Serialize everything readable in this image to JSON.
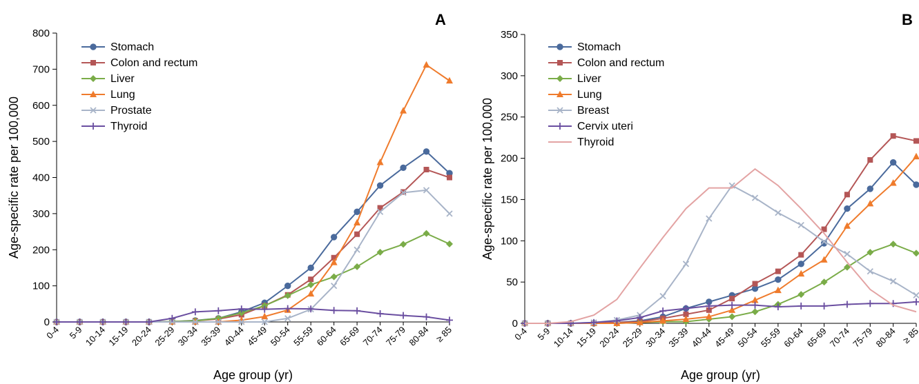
{
  "figure": {
    "panels": [
      {
        "letter": "A"
      },
      {
        "letter": "B"
      }
    ]
  },
  "chart_data": [
    {
      "type": "line",
      "panel_letter": "A",
      "xlabel": "Age group (yr)",
      "ylabel": "Age-specific rate per 100,000",
      "ylim": [
        0,
        800
      ],
      "yticks": [
        0,
        100,
        200,
        300,
        400,
        500,
        600,
        700,
        800
      ],
      "grid": false,
      "legend_position": "top-left",
      "categories": [
        "0-4",
        "5-9",
        "10-14",
        "15-19",
        "20-24",
        "25-29",
        "30-34",
        "35-39",
        "40-44",
        "45-49",
        "50-54",
        "55-59",
        "60-64",
        "65-69",
        "70-74",
        "75-79",
        "80-84",
        "≥ 85"
      ],
      "series": [
        {
          "name": "Stomach",
          "color": "#4a6a9c",
          "marker": "circle",
          "values": [
            0,
            0,
            0,
            0,
            0,
            1,
            4,
            10,
            28,
            53,
            100,
            150,
            235,
            305,
            378,
            427,
            472,
            412
          ]
        },
        {
          "name": "Colon and rectum",
          "color": "#b45656",
          "marker": "square",
          "values": [
            0,
            0,
            0,
            0,
            0,
            1,
            3,
            8,
            20,
            45,
            75,
            118,
            178,
            243,
            316,
            360,
            422,
            400
          ]
        },
        {
          "name": "Liver",
          "color": "#7aac48",
          "marker": "diamond",
          "values": [
            0,
            0,
            0,
            0,
            0,
            1,
            3,
            10,
            25,
            45,
            73,
            103,
            125,
            153,
            193,
            215,
            245,
            216
          ]
        },
        {
          "name": "Lung",
          "color": "#ef7b2c",
          "marker": "triangle",
          "values": [
            0,
            0,
            0,
            0,
            0,
            0,
            0,
            0,
            5,
            15,
            33,
            78,
            165,
            275,
            442,
            585,
            712,
            668
          ]
        },
        {
          "name": "Prostate",
          "color": "#a8b4c8",
          "marker": "x",
          "values": [
            0,
            0,
            0,
            0,
            0,
            0,
            0,
            0,
            0,
            0,
            10,
            35,
            100,
            200,
            305,
            358,
            365,
            300
          ]
        },
        {
          "name": "Thyroid",
          "color": "#6a4ea0",
          "marker": "plus",
          "values": [
            0,
            0,
            0,
            0,
            0,
            10,
            28,
            31,
            36,
            35,
            37,
            36,
            32,
            31,
            23,
            18,
            14,
            5
          ]
        }
      ]
    },
    {
      "type": "line",
      "panel_letter": "B",
      "xlabel": "Age group (yr)",
      "ylabel": "Age-specific rate per 100,000",
      "ylim": [
        0,
        350
      ],
      "yticks": [
        0,
        50,
        100,
        150,
        200,
        250,
        300,
        350
      ],
      "grid": false,
      "legend_position": "top-left",
      "categories": [
        "0-4",
        "5-9",
        "10-14",
        "15-19",
        "20-24",
        "25-29",
        "30-34",
        "35-39",
        "40-44",
        "45-49",
        "50-54",
        "55-59",
        "60-64",
        "65-69",
        "70-74",
        "75-79",
        "80-84",
        "≥ 85"
      ],
      "series": [
        {
          "name": "Stomach",
          "color": "#4a6a9c",
          "marker": "circle",
          "values": [
            0,
            0,
            0,
            0,
            1,
            3,
            8,
            18,
            26,
            34,
            42,
            53,
            72,
            97,
            139,
            163,
            195,
            168
          ]
        },
        {
          "name": "Colon and rectum",
          "color": "#b45656",
          "marker": "square",
          "values": [
            0,
            0,
            0,
            0,
            1,
            2,
            6,
            11,
            16,
            30,
            48,
            63,
            83,
            114,
            156,
            198,
            227,
            221
          ]
        },
        {
          "name": "Liver",
          "color": "#7aac48",
          "marker": "diamond",
          "values": [
            0,
            0,
            0,
            0,
            0,
            1,
            2,
            2,
            5,
            8,
            14,
            23,
            35,
            50,
            68,
            86,
            96,
            85
          ]
        },
        {
          "name": "Lung",
          "color": "#ef7b2c",
          "marker": "triangle",
          "values": [
            0,
            0,
            0,
            0,
            0,
            1,
            3,
            5,
            8,
            16,
            28,
            40,
            60,
            77,
            118,
            145,
            170,
            202
          ]
        },
        {
          "name": "Breast",
          "color": "#a8b4c8",
          "marker": "x",
          "values": [
            0,
            0,
            0,
            1,
            4,
            10,
            33,
            72,
            127,
            167,
            152,
            134,
            119,
            99,
            84,
            63,
            51,
            34
          ]
        },
        {
          "name": "Cervix uteri",
          "color": "#6a4ea0",
          "marker": "plus",
          "values": [
            0,
            0,
            0,
            1,
            3,
            7,
            15,
            18,
            21,
            22,
            22,
            20,
            21,
            21,
            23,
            24,
            24,
            26
          ]
        },
        {
          "name": "Thyroid",
          "color": "#e3a3a3",
          "marker": "none",
          "values": [
            0,
            0,
            2,
            10,
            29,
            67,
            104,
            139,
            164,
            164,
            187,
            167,
            139,
            109,
            74,
            41,
            22,
            14
          ]
        }
      ]
    }
  ]
}
